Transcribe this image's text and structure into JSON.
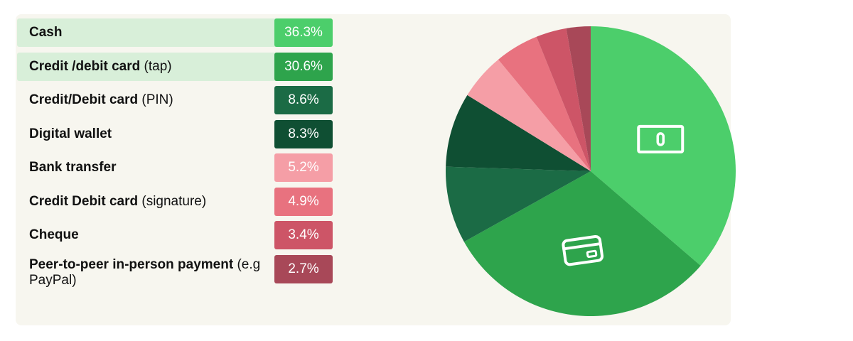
{
  "chart_data": {
    "type": "pie",
    "slices": [
      {
        "label": "Cash",
        "bold": "Cash",
        "rest": "",
        "value": 36.3,
        "display": "36.3%",
        "color": "#4cce6b",
        "highlight": true,
        "icon": "banknote-icon"
      },
      {
        "label": "Credit /debit card (tap)",
        "bold": "Credit /debit card",
        "rest": " (tap)",
        "value": 30.6,
        "display": "30.6%",
        "color": "#2ea44c",
        "highlight": true,
        "icon": "credit-card-icon"
      },
      {
        "label": "Credit/Debit card (PIN)",
        "bold": "Credit/Debit card",
        "rest": " (PIN)",
        "value": 8.6,
        "display": "8.6%",
        "color": "#1b6b45",
        "highlight": false
      },
      {
        "label": "Digital wallet",
        "bold": "Digital wallet",
        "rest": "",
        "value": 8.3,
        "display": "8.3%",
        "color": "#0f4f33",
        "highlight": false
      },
      {
        "label": "Bank transfer",
        "bold": "Bank transfer",
        "rest": "",
        "value": 5.2,
        "display": "5.2%",
        "color": "#f59ea6",
        "highlight": false
      },
      {
        "label": "Credit Debit card (signature)",
        "bold": "Credit Debit card",
        "rest": " (signature)",
        "value": 4.9,
        "display": "4.9%",
        "color": "#e8727f",
        "highlight": false
      },
      {
        "label": "Cheque",
        "bold": "Cheque",
        "rest": "",
        "value": 3.4,
        "display": "3.4%",
        "color": "#cd5567",
        "highlight": false
      },
      {
        "label": "Peer-to-peer in-person payment (e.g PayPal)",
        "bold": "Peer-to-peer in-person payment",
        "rest": " (e.g PayPal)",
        "value": 2.7,
        "display": "2.7%",
        "color": "#a84858",
        "highlight": false
      }
    ]
  }
}
